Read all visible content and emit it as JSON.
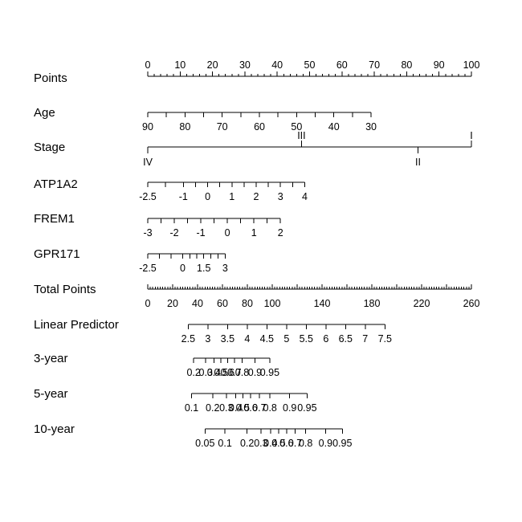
{
  "chart_data": {
    "type": "nomogram",
    "rows": [
      {
        "name": "Points",
        "ticks": [
          "0",
          "10",
          "20",
          "30",
          "40",
          "50",
          "60",
          "70",
          "80",
          "90",
          "100"
        ],
        "minor_per_major": 5
      },
      {
        "name": "Age",
        "ticks": [
          "90",
          "80",
          "70",
          "60",
          "50",
          "40",
          "30"
        ],
        "points_at_ticks": [
          0,
          11.5,
          23,
          34.5,
          46,
          57.5,
          69
        ],
        "minor_per_major": 2
      },
      {
        "name": "Stage",
        "levels": [
          "IV",
          "III",
          "II",
          "I"
        ],
        "points_at_levels": [
          0,
          47.5,
          83.5,
          100
        ]
      },
      {
        "name": "ATP1A2",
        "ticks": [
          "-2.5",
          "-1",
          "0",
          "1",
          "2",
          "3",
          "4"
        ],
        "points_at_ticks": [
          0,
          11,
          18.5,
          26,
          33.5,
          41,
          48.5
        ],
        "minor_per_major": 2
      },
      {
        "name": "FREM1",
        "ticks": [
          "-3",
          "-2",
          "-1",
          "0",
          "1",
          "2"
        ],
        "points_at_ticks": [
          0,
          8.2,
          16.4,
          24.6,
          32.8,
          41
        ],
        "minor_per_major": 2
      },
      {
        "name": "GPR171",
        "ticks": [
          "-2.5",
          "0",
          "1.5",
          "3"
        ],
        "points_at_ticks": [
          0,
          10.8,
          17.3,
          23.9
        ],
        "minor_per_major": 3
      },
      {
        "name": "Total Points",
        "ticks": [
          "0",
          "20",
          "40",
          "60",
          "80",
          "100",
          "140",
          "180",
          "220",
          "260"
        ],
        "tick_values": [
          0,
          20,
          40,
          60,
          80,
          100,
          140,
          180,
          220,
          260
        ],
        "scale_max": 260
      },
      {
        "name": "Linear Predictor",
        "ticks": [
          "2.5",
          "3",
          "3.5",
          "4",
          "4.5",
          "5",
          "5.5",
          "6",
          "6.5",
          "7",
          "7.5"
        ],
        "total_points_at_ticks": [
          32.5,
          48.3,
          64.1,
          79.9,
          95.7,
          111.5,
          127.3,
          143.1,
          158.9,
          174.7,
          190.5
        ],
        "minor_per_major": 1
      },
      {
        "name": "3-year",
        "ticks": [
          "0.2",
          "0.3",
          "0.4",
          "0.5",
          "0.6",
          "0.7",
          "0.8",
          "0.9",
          "0.95"
        ],
        "total_points_at_ticks": [
          36.9,
          46.6,
          53.2,
          58.8,
          64.1,
          69.6,
          75.8,
          86.1,
          98
        ]
      },
      {
        "name": "5-year",
        "ticks": [
          "0.1",
          "0.2",
          "0.3",
          "0.4",
          "0.5",
          "0.6",
          "0.7",
          "0.8",
          "0.9",
          "0.95"
        ],
        "total_points_at_ticks": [
          35.2,
          52.1,
          63.1,
          70.7,
          76.3,
          82.6,
          89.6,
          98.2,
          114,
          128
        ]
      },
      {
        "name": "10-year",
        "ticks": [
          "0.05",
          "0.1",
          "0.2",
          "0.3",
          "0.4",
          "0.5",
          "0.6",
          "0.7",
          "0.8",
          "0.9",
          "0.95"
        ],
        "total_points_at_ticks": [
          46,
          62,
          79.8,
          90.9,
          98.6,
          105.1,
          111.5,
          118.4,
          126.9,
          142.8,
          156.3
        ]
      }
    ]
  }
}
